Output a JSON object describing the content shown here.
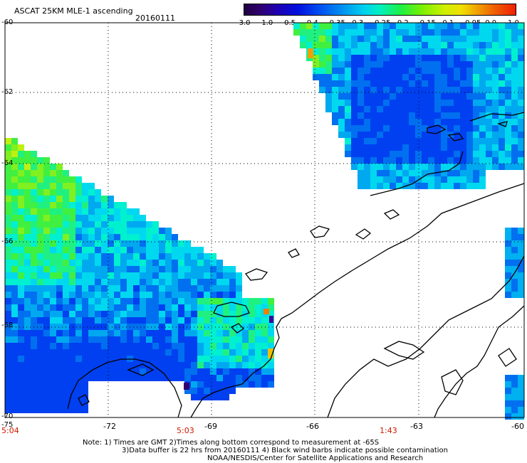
{
  "header": {
    "title": "ASCAT 25KM MLE-1 ascending",
    "date": "20160111"
  },
  "colorbar": {
    "labels": [
      "-3.0",
      "-1.0",
      "-0.5",
      "-0.4",
      "-0.35",
      "-0.3",
      "-0.25",
      "-0.2",
      "-0.15",
      "-0.1",
      "-0.05",
      "0.0",
      "1.0"
    ],
    "colors": [
      "#2a0050",
      "#4a0090",
      "#2a00c0",
      "#0020e0",
      "#0060f0",
      "#00a0f0",
      "#00e0f0",
      "#00f0a0",
      "#30f000",
      "#a0f000",
      "#f0f000",
      "#f0a000",
      "#f03000"
    ]
  },
  "axes": {
    "lat_labels": [
      "-60",
      "-62",
      "-64",
      "-66",
      "-68",
      "-70"
    ],
    "lon_labels": [
      "-75",
      "-72",
      "-69",
      "-66",
      "-63",
      "-60"
    ]
  },
  "times": [
    "5:04",
    "5:03",
    "1:43"
  ],
  "notes": {
    "line1": "Note: 1) Times are GMT 2)Times along bottom correspond to measurement at -65S",
    "line2": "3)Data buffer is 22 hrs from 20160111 4) Black wind barbs indicate possible contamination",
    "line3": "NOAA/NESDIS/Center for Satellite Applications and Research"
  },
  "colors": {
    "green": "#40f040",
    "cyan": "#00e8f0",
    "blue": "#0060f0"
  }
}
